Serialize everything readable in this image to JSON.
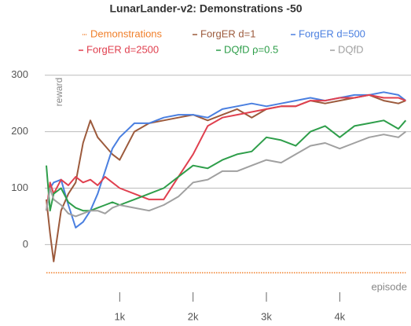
{
  "chart_data": {
    "type": "line",
    "title": "LunarLander-v2: Demonstrations -50",
    "x_label": "episode",
    "y_label": "reward",
    "x": [
      0,
      50,
      100,
      200,
      300,
      400,
      500,
      600,
      700,
      800,
      900,
      1000,
      1200,
      1400,
      1600,
      1800,
      2000,
      2200,
      2400,
      2600,
      2800,
      3000,
      3200,
      3400,
      3600,
      3800,
      4000,
      4200,
      4400,
      4600,
      4800,
      4900
    ],
    "xlim": [
      0,
      4950
    ],
    "ylim": [
      -90,
      315
    ],
    "xticks": [
      {
        "value": 1000,
        "label": "1k"
      },
      {
        "value": 2000,
        "label": "2k"
      },
      {
        "value": 3000,
        "label": "3k"
      },
      {
        "value": 4000,
        "label": "4k"
      }
    ],
    "yticks": [
      0,
      100,
      200,
      300
    ],
    "grid": true,
    "legend": "top",
    "series": [
      {
        "name": "Demonstrations",
        "color": "#f07f2a",
        "dotted": true,
        "values": [
          -50,
          -50,
          -50,
          -50,
          -50,
          -50,
          -50,
          -50,
          -50,
          -50,
          -50,
          -50,
          -50,
          -50,
          -50,
          -50,
          -50,
          -50,
          -50,
          -50,
          -50,
          -50,
          -50,
          -50,
          -50,
          -50,
          -50,
          -50,
          -50,
          -50,
          -50,
          -50
        ]
      },
      {
        "name": "ForgER d=1",
        "color": "#9c5a3c",
        "values": [
          80,
          20,
          -30,
          60,
          90,
          110,
          180,
          220,
          190,
          175,
          160,
          150,
          200,
          215,
          220,
          225,
          230,
          220,
          230,
          240,
          225,
          240,
          245,
          245,
          255,
          250,
          255,
          260,
          265,
          255,
          250,
          255
        ]
      },
      {
        "name": "ForgER d=500",
        "color": "#4a7fe0",
        "values": [
          60,
          100,
          110,
          115,
          70,
          30,
          40,
          60,
          90,
          130,
          170,
          190,
          215,
          215,
          225,
          230,
          230,
          225,
          240,
          245,
          250,
          245,
          250,
          255,
          260,
          255,
          260,
          265,
          265,
          270,
          265,
          255
        ]
      },
      {
        "name": "ForgER d=2500",
        "color": "#e0404f",
        "values": [
          60,
          110,
          90,
          115,
          105,
          120,
          110,
          115,
          105,
          120,
          110,
          100,
          90,
          80,
          80,
          120,
          160,
          210,
          225,
          230,
          235,
          240,
          245,
          245,
          255,
          255,
          260,
          260,
          265,
          260,
          260,
          255
        ]
      },
      {
        "name": "DQfD ρ=0.5",
        "color": "#2e9e4a",
        "values": [
          140,
          60,
          90,
          100,
          75,
          65,
          60,
          60,
          65,
          70,
          75,
          70,
          80,
          90,
          100,
          120,
          140,
          135,
          150,
          160,
          165,
          190,
          185,
          175,
          200,
          210,
          190,
          210,
          215,
          220,
          205,
          220
        ]
      },
      {
        "name": "DQfD",
        "color": "#a0a0a0",
        "values": [
          60,
          100,
          80,
          70,
          55,
          50,
          55,
          60,
          60,
          55,
          65,
          70,
          65,
          60,
          70,
          85,
          110,
          115,
          130,
          130,
          140,
          150,
          145,
          160,
          175,
          180,
          170,
          180,
          190,
          195,
          190,
          200
        ]
      }
    ]
  }
}
